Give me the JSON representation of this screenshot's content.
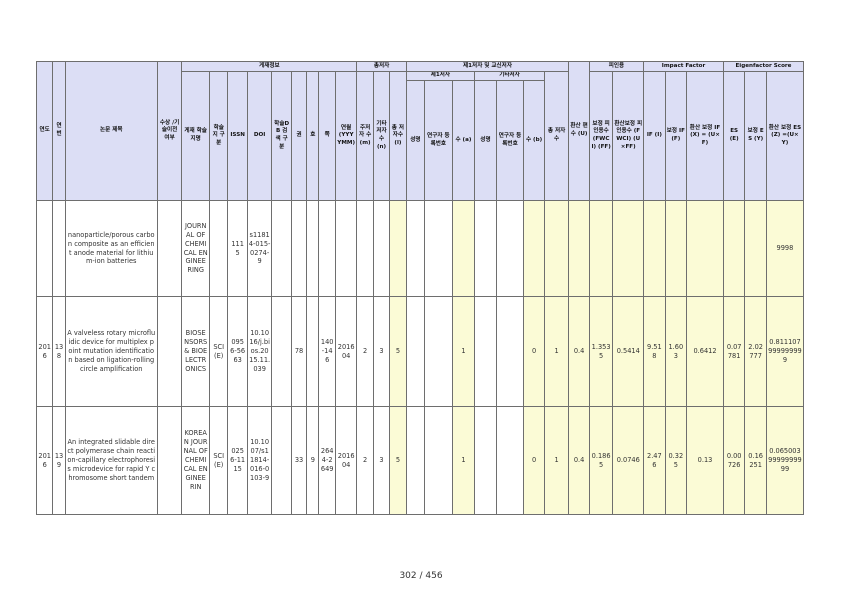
{
  "header": {
    "group_publication": "게재정보",
    "group_authors": "총저자",
    "group_faculty": "제1저자 및 교신저자",
    "group_citation": "피인용",
    "group_if": "Impact Factor",
    "group_es": "Eigenfactor Score",
    "sub_first": "제1저자",
    "sub_other": "기타저자",
    "col_year": "연도",
    "col_no": "연번",
    "col_title": "논문 제목",
    "col_award": "수상 /기술이전 여부",
    "col_journal": "게재 학술지명",
    "col_class": "학술지 구분",
    "col_issn": "ISSN",
    "col_doi": "DOI",
    "col_db": "학술DB 검색 구분",
    "col_vol": "권",
    "col_issue": "호",
    "col_page": "쪽",
    "col_date": "연월 (YYYYMM)",
    "col_main": "주저자 수 (m)",
    "col_other": "기타 저자수 (n)",
    "col_total": "총 저자수 (l)",
    "col_name1": "성명",
    "col_reg1": "연구자 등록번호",
    "col_cnt1": "수 (a)",
    "col_name2": "성명",
    "col_reg2": "연구자 등록번호",
    "col_cnt2": "수 (b)",
    "col_faculty_total": "총 저자수",
    "col_u": "환산 편수 (U)",
    "col_fwci": "보정 피인용수 (FWCI) (FF)",
    "col_fwci_conv": "환산보정 피인용수 (FWCI) (U×FF)",
    "col_if": "IF (I)",
    "col_if_adj": "보정 IF (F)",
    "col_if_conv": "환산 보정 IF(X) = (U×F)",
    "col_es": "ES (E)",
    "col_es_adj": "보정 ES (Y)",
    "col_es_conv": "환산 보정 ES(Z) =(U×Y)"
  },
  "rows": [
    {
      "year": "",
      "no": "",
      "title": "nanoparticle/porous carbon composite as an efficient anode material for lithium-ion batteries",
      "award": "",
      "journal": "JOURNAL OF CHEMICAL ENGINEERING",
      "class": "",
      "issn": "1115",
      "doi": "s11814-015-0274-9",
      "db": "",
      "vol": "",
      "issue": "",
      "page": "",
      "date": "",
      "main": "",
      "other": "",
      "total": "",
      "name1": "",
      "reg1": "",
      "cnt1": "",
      "name2": "",
      "reg2": "",
      "cnt2": "",
      "faculty_total": "",
      "u": "",
      "fwci": "",
      "fwci_conv": "",
      "if": "",
      "if_adj": "",
      "if_conv": "",
      "es": "",
      "es_adj": "",
      "es_conv": "9998"
    },
    {
      "year": "2016",
      "no": "138",
      "title": "A valveless rotary microfluidic device for multiplex point mutation identification based on ligation-rolling circle amplification",
      "award": "",
      "journal": "BIOSENSORS & BIOELECTRONICS",
      "class": "SCI(E)",
      "issn": "0956-5663",
      "doi": "10.1016/j.bios.2015.11.039",
      "db": "",
      "vol": "78",
      "issue": "",
      "page": "140-146",
      "date": "201604",
      "main": "2",
      "other": "3",
      "total": "5",
      "name1": "",
      "reg1": "",
      "cnt1": "1",
      "name2": "",
      "reg2": "",
      "cnt2": "0",
      "faculty_total": "1",
      "u": "0.4",
      "fwci": "1.3535",
      "fwci_conv": "0.5414",
      "if": "9.518",
      "if_adj": "1.603",
      "if_conv": "0.6412",
      "es": "0.07781",
      "es_adj": "2.02777",
      "es_conv": "0.811107999999999"
    },
    {
      "year": "2016",
      "no": "139",
      "title": "An integrated slidable direct polymerase chain reaction-capillary electrophoresis microdevice for rapid Y chromosome short tandem",
      "award": "",
      "journal": "KOREAN JOURNAL OF CHEMICAL ENGINEERIN",
      "class": "SCI(E)",
      "issn": "0256-1115",
      "doi": "10.1007/s11814-016-0103-9",
      "db": "",
      "vol": "33",
      "issue": "9",
      "page": "2644-2649",
      "date": "201604",
      "main": "2",
      "other": "3",
      "total": "5",
      "name1": "",
      "reg1": "",
      "cnt1": "1",
      "name2": "",
      "reg2": "",
      "cnt2": "0",
      "faculty_total": "1",
      "u": "0.4",
      "fwci": "0.1865",
      "fwci_conv": "0.0746",
      "if": "2.476",
      "if_adj": "0.325",
      "if_conv": "0.13",
      "es": "0.00726",
      "es_adj": "0.16251",
      "es_conv": "0.0650039999999999"
    }
  ],
  "footer": {
    "page_number": "302 / 456"
  },
  "colors": {
    "header_bg": "#dcdef5",
    "highlight_bg": "#fbfbd6",
    "border": "#6e6e6e"
  }
}
